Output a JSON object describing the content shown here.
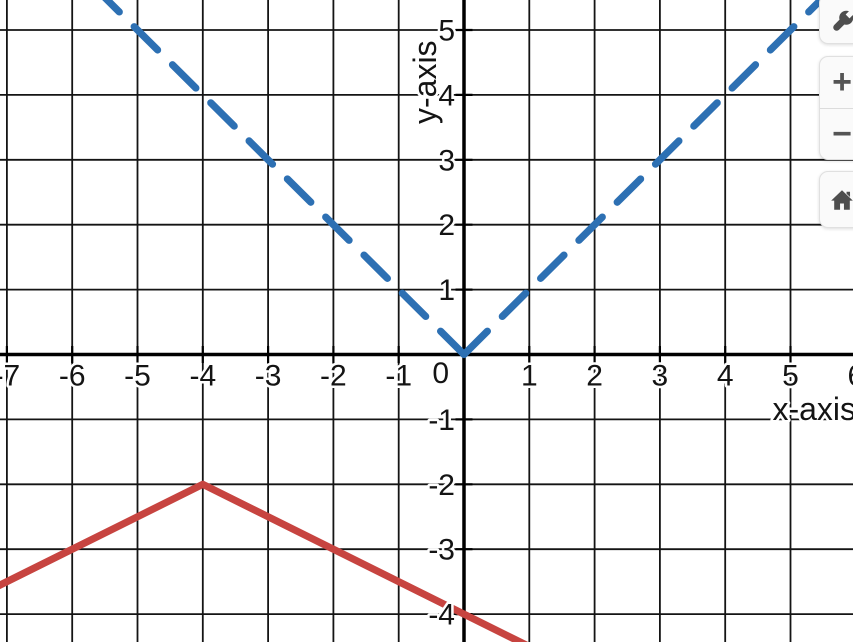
{
  "chart_data": {
    "type": "line",
    "title": "",
    "xlabel": "x-axis",
    "ylabel": "y-axis",
    "origin_label": "0",
    "grid": true,
    "legend": "none",
    "x_ticks": [
      -7,
      -6,
      -5,
      -4,
      -3,
      -2,
      -1,
      1,
      2,
      3,
      4,
      5,
      6
    ],
    "y_ticks": [
      -4,
      -3,
      -2,
      -1,
      1,
      2,
      3,
      4,
      5
    ],
    "x_visible_range": [
      -7.1,
      5.95
    ],
    "y_visible_range": [
      -4.45,
      5.45
    ],
    "series": [
      {
        "name": "dashed-blue-absolute-value-curve",
        "equation": "y = |x|",
        "color": "#2d70b3",
        "style": "dashed",
        "vertex": [
          0,
          0
        ],
        "slopes": [
          -1,
          1
        ],
        "points": [
          [
            -5.5,
            5.5
          ],
          [
            0,
            0
          ],
          [
            5.95,
            5.95
          ]
        ]
      },
      {
        "name": "solid-red-absolute-value-curve",
        "equation": "y = -(1/2)|x + 4| - 2",
        "color": "#c74440",
        "style": "solid",
        "vertex": [
          -4,
          -2
        ],
        "slopes": [
          0.5,
          -0.5
        ],
        "points": [
          [
            -7.3,
            -3.65
          ],
          [
            -4,
            -2
          ],
          [
            1.15,
            -4.575
          ]
        ]
      }
    ]
  },
  "controls": {
    "settings_icon": "wrench-icon",
    "zoom_in_label": "+",
    "zoom_out_label": "−",
    "home_icon": "home-icon"
  },
  "colors": {
    "background": "#ffffff",
    "grid_line": "#141414",
    "axis_line": "#000000",
    "label_text": "#141414",
    "label_halo": "#ffffff",
    "button_bg": "#fafafa",
    "button_border": "#e0e0e0",
    "button_icon": "#4e4e4e",
    "curve_blue": "#2d70b3",
    "curve_red": "#c74440"
  }
}
